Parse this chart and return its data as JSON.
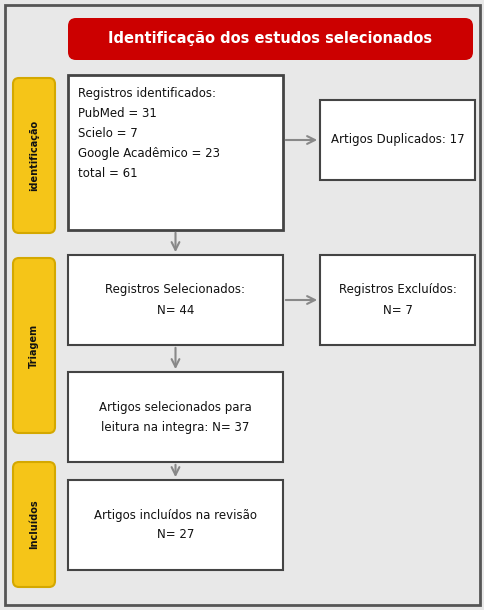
{
  "title": "Identificação dos estudos selecionados",
  "title_bg": "#cc0000",
  "title_fg": "#ffffff",
  "sidebar_color": "#f5c518",
  "sidebar_border": "#d4a800",
  "sidebar_labels": [
    "identificação",
    "Triagem",
    "Incluídos"
  ],
  "box_border": "#444444",
  "box_fill": "#ffffff",
  "background": "#e8e8e8",
  "outer_border": "#555555",
  "box1_text": "Registros identificados:\nPubMed = 31\nScielo = 7\nGoogle Acadêmico = 23\ntotal = 61",
  "box2_text": "Artigos Duplicados: 17",
  "box3_text": "Registros Selecionados:\nN= 44",
  "box4_text": "Registros Excluídos:\nN= 7",
  "box5_text": "Artigos selecionados para\nleitura na integra: N= 37",
  "box6_text": "Artigos incluídos na revisão\nN= 27",
  "arrow_color": "#888888"
}
